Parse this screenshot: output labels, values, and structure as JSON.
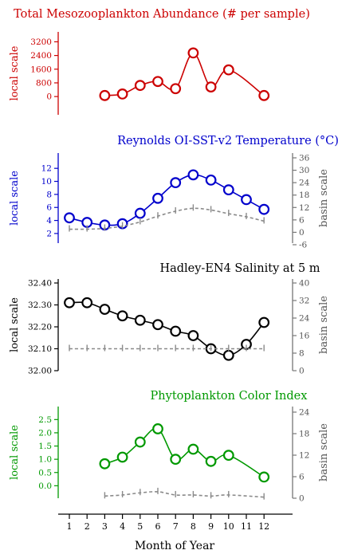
{
  "figure": {
    "xlabel": "Month of Year"
  },
  "chart_data": [
    {
      "type": "line",
      "title": "Total Mesozooplankton Abundance (# per sample)",
      "color": "#cc0000",
      "left_axis": {
        "label": "local scale",
        "ticks": [
          "3200",
          "2400",
          "1600",
          "800",
          "0"
        ],
        "ylim": [
          -600,
          3500
        ]
      },
      "x": [
        3,
        4,
        5,
        6,
        7,
        8,
        9,
        10,
        12
      ],
      "series": [
        {
          "axis": "left",
          "style": "circles-curve",
          "values": [
            60,
            150,
            650,
            880,
            460,
            2550,
            560,
            1560,
            60
          ]
        }
      ]
    },
    {
      "type": "line",
      "title": "Reynolds OI-SST-v2 Temperature (°C)",
      "color": "#0000cc",
      "left_axis": {
        "label": "local scale",
        "ticks": [
          "12",
          "10",
          "8",
          "6",
          "4",
          "2"
        ],
        "ylim": [
          1.5,
          13
        ]
      },
      "right_axis": {
        "label": "basin scale",
        "ticks": [
          "36",
          "30",
          "24",
          "18",
          "12",
          "6",
          "0",
          "-6"
        ],
        "ylim": [
          -6,
          36
        ]
      },
      "x": [
        1,
        2,
        3,
        4,
        5,
        6,
        7,
        8,
        9,
        10,
        11,
        12
      ],
      "series": [
        {
          "axis": "left",
          "style": "circles-curve",
          "values": [
            4.4,
            3.7,
            3.3,
            3.5,
            5.1,
            7.4,
            9.8,
            11.0,
            10.2,
            8.7,
            7.2,
            5.7
          ]
        },
        {
          "axis": "right",
          "style": "dashed-errorbars",
          "values": [
            1.5,
            1.5,
            1.9,
            3.0,
            5.0,
            7.8,
            10.2,
            11.6,
            10.8,
            9.0,
            7.5,
            5.4
          ]
        }
      ]
    },
    {
      "type": "line",
      "title": "Hadley-EN4 Salinity at 5 m",
      "color": "#000000",
      "left_axis": {
        "label": "local scale",
        "ticks": [
          "32.40",
          "32.30",
          "32.20",
          "32.10",
          "32.00"
        ],
        "ylim": [
          32.0,
          32.4
        ]
      },
      "right_axis": {
        "label": "basin scale",
        "ticks": [
          "40",
          "32",
          "24",
          "16",
          "8",
          "0"
        ],
        "ylim": [
          0,
          40
        ]
      },
      "x": [
        1,
        2,
        3,
        4,
        5,
        6,
        7,
        8,
        9,
        10,
        11,
        12
      ],
      "series": [
        {
          "axis": "left",
          "style": "circles-curve",
          "values": [
            32.31,
            32.31,
            32.28,
            32.25,
            32.23,
            32.21,
            32.18,
            32.16,
            32.1,
            32.07,
            32.12,
            32.22
          ]
        },
        {
          "axis": "right",
          "style": "dashed-errorbars",
          "values": [
            32.1,
            32.1,
            32.1,
            32.1,
            32.1,
            32.1,
            32.1,
            32.1,
            32.1,
            32.1,
            32.1,
            32.1
          ]
        }
      ]
    },
    {
      "type": "line",
      "title": "Phytoplankton Color Index",
      "color": "#009900",
      "left_axis": {
        "label": "local scale",
        "ticks": [
          "2.5",
          "2.0",
          "1.5",
          "1.0",
          "0.5",
          "0.0"
        ],
        "ylim": [
          -0.2,
          2.6
        ]
      },
      "right_axis": {
        "label": "basin scale",
        "ticks": [
          "24",
          "18",
          "12",
          "6",
          "0"
        ],
        "ylim": [
          0,
          24
        ]
      },
      "x": [
        3,
        4,
        5,
        6,
        7,
        8,
        9,
        10,
        12
      ],
      "series": [
        {
          "axis": "left",
          "style": "circles-curve",
          "values": [
            0.83,
            1.08,
            1.65,
            2.15,
            1.0,
            1.38,
            0.92,
            1.15,
            0.33
          ]
        },
        {
          "axis": "right",
          "style": "dashed-errorbars",
          "values": [
            0.6,
            0.9,
            1.5,
            1.8,
            0.9,
            0.9,
            0.6,
            0.9,
            0.3
          ]
        }
      ]
    }
  ],
  "x_axis": {
    "ticks": [
      "1",
      "2",
      "3",
      "4",
      "5",
      "6",
      "7",
      "8",
      "9",
      "10",
      "11",
      "12"
    ]
  }
}
